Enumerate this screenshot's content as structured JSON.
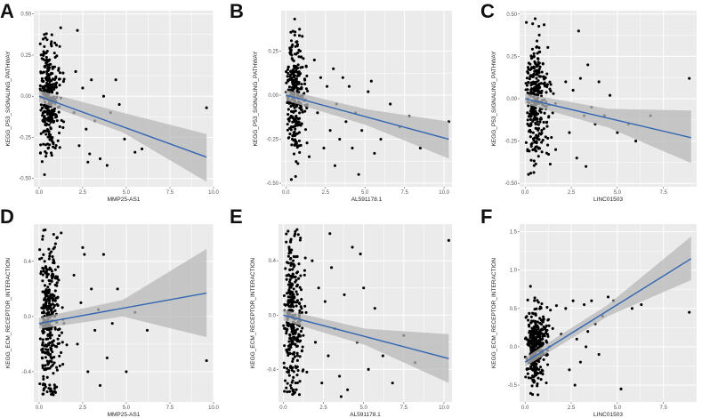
{
  "colors": {
    "panel_bg": "#ebebeb",
    "grid": "#ffffff",
    "point": "#000000",
    "fit_line": "#3366b3",
    "confidence_band": "#b8b8b8"
  },
  "chart_data": [
    {
      "panel": "A",
      "type": "scatter",
      "xlabel": "MMP25-AS1",
      "ylabel": "KEGG_P53_SIGNALING_PATHWAY",
      "xlim": [
        -0.3,
        10.0
      ],
      "ylim": [
        -0.55,
        0.52
      ],
      "xticks": [
        0.0,
        2.5,
        5.0,
        7.5,
        10.0
      ],
      "xtick_labels": [
        "0.0",
        "2.5",
        "5.0",
        "7.5",
        "10.0"
      ],
      "yticks": [
        -0.5,
        -0.25,
        0.0,
        0.25,
        0.5
      ],
      "ytick_labels": [
        "-0.50",
        "-0.25",
        "0.00",
        "0.25",
        "0.50"
      ],
      "fit": {
        "x": [
          0.0,
          9.6
        ],
        "y": [
          0.0,
          -0.37
        ]
      },
      "band": {
        "x": [
          0.0,
          4.8,
          9.6
        ],
        "upper": [
          0.035,
          -0.1,
          -0.23
        ],
        "lower": [
          -0.035,
          -0.22,
          -0.52
        ]
      },
      "points_main": {
        "n": 330,
        "x_max": 1.9,
        "y_mean": 0.0,
        "y_sd": 0.17,
        "slope": -0.03
      },
      "points_tail": {
        "x": [
          2.0,
          2.1,
          2.3,
          2.5,
          2.7,
          2.9,
          3.0,
          3.2,
          3.5,
          3.7,
          3.9,
          4.1,
          4.4,
          4.6,
          4.9,
          5.5,
          5.9,
          9.6,
          2.2,
          2.8
        ],
        "y": [
          -0.1,
          0.15,
          -0.3,
          0.05,
          -0.2,
          -0.35,
          0.1,
          -0.15,
          -0.38,
          0.0,
          -0.42,
          -0.1,
          0.1,
          -0.05,
          -0.26,
          -0.34,
          -0.32,
          -0.07,
          0.4,
          -0.4
        ]
      }
    },
    {
      "panel": "B",
      "type": "scatter",
      "xlabel": "AL591178.1",
      "ylabel": "KEGG_P53_SIGNALING_PATHWAY",
      "xlim": [
        -0.3,
        10.5
      ],
      "ylim": [
        -0.52,
        0.48
      ],
      "xticks": [
        0.0,
        2.5,
        5.0,
        7.5,
        10.0
      ],
      "xtick_labels": [
        "0.0",
        "2.5",
        "5.0",
        "7.5",
        "10.0"
      ],
      "yticks": [
        -0.5,
        -0.25,
        0.0,
        0.25
      ],
      "ytick_labels": [
        "-0.50",
        "-0.25",
        "0.00",
        "0.25"
      ],
      "fit": {
        "x": [
          0.0,
          10.3
        ],
        "y": [
          0.0,
          -0.25
        ]
      },
      "band": {
        "x": [
          0.0,
          5.1,
          10.3
        ],
        "upper": [
          0.03,
          -0.08,
          -0.15
        ],
        "lower": [
          -0.03,
          -0.17,
          -0.36
        ]
      },
      "points_main": {
        "n": 300,
        "x_max": 1.7,
        "y_mean": 0.0,
        "y_sd": 0.17,
        "slope": -0.02
      },
      "points_tail": {
        "x": [
          1.8,
          2.0,
          2.2,
          2.4,
          2.6,
          2.8,
          3.0,
          3.2,
          3.4,
          3.6,
          3.8,
          4.0,
          4.2,
          4.4,
          4.8,
          5.2,
          5.6,
          6.0,
          6.6,
          7.2,
          7.8,
          8.5,
          10.3,
          3.1,
          4.6,
          5.4
        ],
        "y": [
          0.2,
          -0.1,
          0.1,
          -0.3,
          0.05,
          -0.2,
          0.15,
          -0.05,
          -0.25,
          0.1,
          -0.15,
          0.05,
          -0.3,
          -0.1,
          -0.2,
          0.02,
          -0.33,
          -0.25,
          -0.05,
          -0.18,
          -0.12,
          -0.3,
          -0.15,
          -0.4,
          -0.45,
          0.08
        ]
      }
    },
    {
      "panel": "C",
      "type": "scatter",
      "xlabel": "LINC01503",
      "ylabel": "KEGG_P53_SIGNALING_PATHWAY",
      "xlim": [
        -0.3,
        9.3
      ],
      "ylim": [
        -0.52,
        0.52
      ],
      "xticks": [
        0.0,
        2.5,
        5.0,
        7.5
      ],
      "xtick_labels": [
        "0.0",
        "2.5",
        "5.0",
        "7.5"
      ],
      "yticks": [
        -0.5,
        -0.25,
        0.0,
        0.25,
        0.5
      ],
      "ytick_labels": [
        "-0.50",
        "-0.25",
        "0.00",
        "0.25",
        "0.50"
      ],
      "fit": {
        "x": [
          0.0,
          9.0
        ],
        "y": [
          0.0,
          -0.23
        ]
      },
      "band": {
        "x": [
          0.0,
          4.5,
          9.0
        ],
        "upper": [
          0.03,
          -0.06,
          -0.07
        ],
        "lower": [
          -0.03,
          -0.17,
          -0.38
        ]
      },
      "points_main": {
        "n": 330,
        "x_max": 2.1,
        "y_mean": 0.0,
        "y_sd": 0.17,
        "slope": -0.02
      },
      "points_tail": {
        "x": [
          2.2,
          2.4,
          2.6,
          2.8,
          3.0,
          3.2,
          3.4,
          3.6,
          3.8,
          4.0,
          4.3,
          4.6,
          5.0,
          5.6,
          6.0,
          6.8,
          8.9,
          2.9,
          3.3
        ],
        "y": [
          0.1,
          -0.2,
          0.05,
          -0.35,
          0.12,
          -0.1,
          0.2,
          -0.05,
          -0.15,
          0.1,
          -0.1,
          0.02,
          -0.2,
          -0.15,
          -0.25,
          -0.1,
          0.12,
          0.4,
          -0.4
        ]
      }
    },
    {
      "panel": "D",
      "type": "scatter",
      "xlabel": "MMP25-AS1",
      "ylabel": "KEGG_ECM_RECEPTOR_INTERACTION",
      "xlim": [
        -0.3,
        10.0
      ],
      "ylim": [
        -0.62,
        0.67
      ],
      "xticks": [
        0.0,
        2.5,
        5.0,
        7.5,
        10.0
      ],
      "xtick_labels": [
        "0.0",
        "2.5",
        "5.0",
        "7.5",
        "10.0"
      ],
      "yticks": [
        -0.4,
        0.0,
        0.4
      ],
      "ytick_labels": [
        "-0.4",
        "0.0",
        "0.4"
      ],
      "fit": {
        "x": [
          0.0,
          9.6
        ],
        "y": [
          -0.05,
          0.17
        ]
      },
      "band": {
        "x": [
          0.0,
          4.8,
          9.6
        ],
        "upper": [
          -0.01,
          0.12,
          0.49
        ],
        "lower": [
          -0.09,
          0.0,
          -0.15
        ]
      },
      "points_main": {
        "n": 330,
        "x_max": 1.9,
        "y_mean": -0.03,
        "y_sd": 0.3,
        "slope": 0.0
      },
      "points_tail": {
        "x": [
          2.0,
          2.2,
          2.4,
          2.6,
          2.8,
          3.0,
          3.2,
          3.4,
          3.7,
          3.9,
          4.2,
          4.5,
          5.0,
          5.5,
          6.2,
          9.6,
          2.5,
          3.5
        ],
        "y": [
          0.3,
          -0.2,
          0.1,
          0.45,
          -0.4,
          0.2,
          -0.1,
          0.05,
          0.45,
          -0.3,
          -0.05,
          0.2,
          -0.4,
          0.03,
          -0.1,
          -0.32,
          0.5,
          -0.5
        ]
      }
    },
    {
      "panel": "E",
      "type": "scatter",
      "xlabel": "AL591178.1",
      "ylabel": "KEGG_ECM_RECEPTOR_INTERACTION",
      "xlim": [
        -0.3,
        10.5
      ],
      "ylim": [
        -0.64,
        0.67
      ],
      "xticks": [
        0.0,
        2.5,
        5.0,
        7.5,
        10.0
      ],
      "xtick_labels": [
        "0.0",
        "2.5",
        "5.0",
        "7.5",
        "10.0"
      ],
      "yticks": [
        -0.4,
        0.0,
        0.4
      ],
      "ytick_labels": [
        "-0.4",
        "0.0",
        "0.4"
      ],
      "fit": {
        "x": [
          0.0,
          10.3
        ],
        "y": [
          0.0,
          -0.32
        ]
      },
      "band": {
        "x": [
          0.0,
          5.1,
          10.3
        ],
        "upper": [
          0.04,
          -0.1,
          -0.14
        ],
        "lower": [
          -0.04,
          -0.22,
          -0.5
        ]
      },
      "points_main": {
        "n": 300,
        "x_max": 1.7,
        "y_mean": 0.0,
        "y_sd": 0.3,
        "slope": -0.03
      },
      "points_tail": {
        "x": [
          1.8,
          2.0,
          2.2,
          2.4,
          2.6,
          2.8,
          3.0,
          3.2,
          3.5,
          3.8,
          4.0,
          4.3,
          4.6,
          5.0,
          5.3,
          5.7,
          6.2,
          6.8,
          7.5,
          8.2,
          10.3,
          2.9,
          3.6,
          4.8
        ],
        "y": [
          0.4,
          -0.2,
          0.2,
          -0.5,
          0.1,
          -0.3,
          0.35,
          -0.1,
          -0.45,
          0.15,
          -0.55,
          0.5,
          -0.2,
          0.2,
          -0.4,
          0.05,
          -0.3,
          -0.5,
          -0.15,
          -0.35,
          0.55,
          0.6,
          -0.6,
          0.45
        ]
      }
    },
    {
      "panel": "F",
      "type": "scatter",
      "xlabel": "LINC01503",
      "ylabel": "KEGG_ECM_RECEPTOR_INTERACTION",
      "xlim": [
        -0.3,
        9.3
      ],
      "ylim": [
        -0.72,
        1.6
      ],
      "xticks": [
        0.0,
        2.5,
        5.0,
        7.5
      ],
      "xtick_labels": [
        "0.0",
        "2.5",
        "5.0",
        "7.5"
      ],
      "yticks": [
        -0.5,
        0.0,
        0.5,
        1.0,
        1.5
      ],
      "ytick_labels": [
        "-0.5",
        "0.0",
        "0.5",
        "1.0",
        "1.5"
      ],
      "fit": {
        "x": [
          0.0,
          9.0
        ],
        "y": [
          -0.2,
          1.15
        ]
      },
      "band": {
        "x": [
          0.0,
          4.5,
          9.0
        ],
        "upper": [
          -0.14,
          0.55,
          1.44
        ],
        "lower": [
          -0.26,
          0.4,
          0.87
        ]
      },
      "points_main": {
        "n": 330,
        "x_max": 2.1,
        "y_mean": -0.05,
        "y_sd": 0.25,
        "slope": 0.1
      },
      "points_tail": {
        "x": [
          2.2,
          2.4,
          2.6,
          2.8,
          3.0,
          3.2,
          3.4,
          3.6,
          3.8,
          4.0,
          4.2,
          4.5,
          4.8,
          5.2,
          5.8,
          6.3,
          8.9,
          2.7,
          3.3
        ],
        "y": [
          0.5,
          -0.3,
          0.6,
          0.1,
          -0.2,
          0.55,
          0.2,
          0.6,
          0.3,
          -0.1,
          0.4,
          0.65,
          0.6,
          -0.55,
          0.5,
          0.55,
          0.45,
          -0.5,
          0.0
        ]
      }
    }
  ]
}
